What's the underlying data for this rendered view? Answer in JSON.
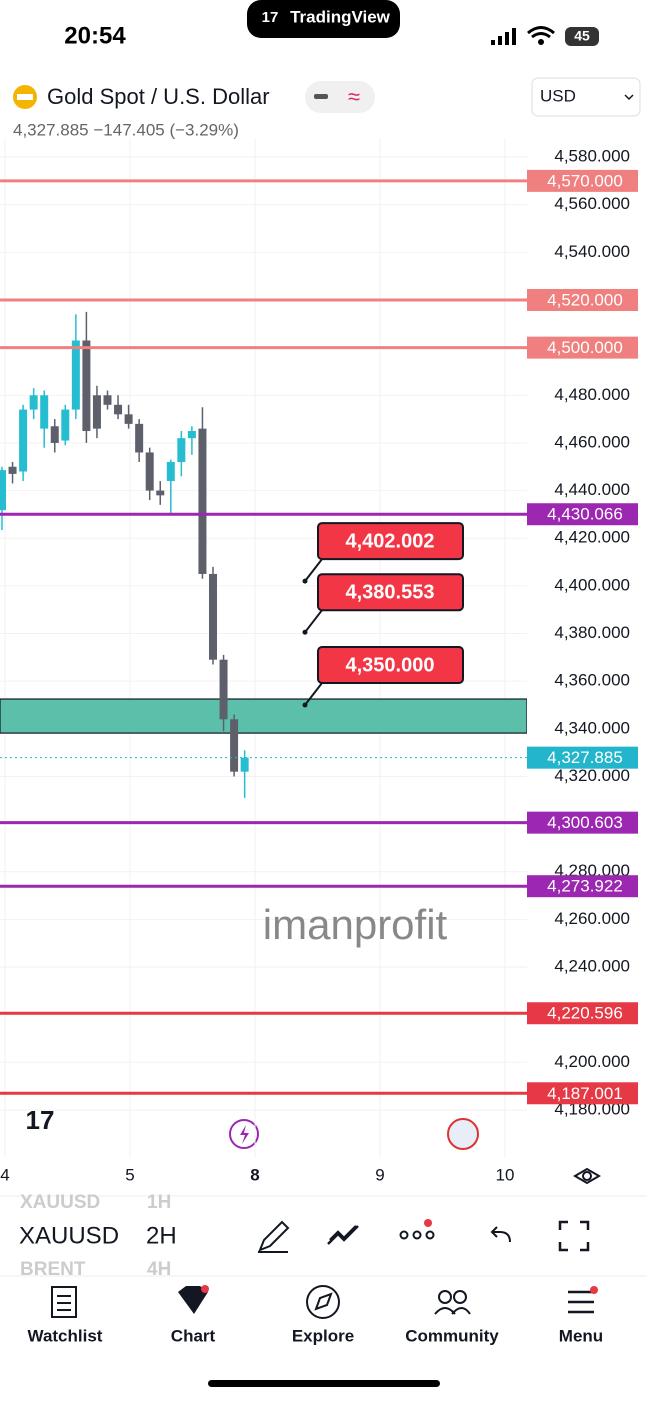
{
  "status": {
    "time": "20:54",
    "app": "TradingView",
    "battery": "45"
  },
  "header": {
    "symbol": "Gold Spot / U.S. Dollar",
    "quote": "4,327.885  −147.405 (−3.29%)",
    "currency": "USD"
  },
  "chart_data": {
    "type": "candlestick",
    "ylim": [
      4160,
      4588
    ],
    "yticks": [
      {
        "value": 4580,
        "label": "4,580.000"
      },
      {
        "value": 4560,
        "label": "4,560.000"
      },
      {
        "value": 4540,
        "label": "4,540.000"
      },
      {
        "value": 4520,
        "label": "4,520.000"
      },
      {
        "value": 4500,
        "label": "4,500.000"
      },
      {
        "value": 4480,
        "label": "4,480.000"
      },
      {
        "value": 4460,
        "label": "4,460.000"
      },
      {
        "value": 4440,
        "label": "4,440.000"
      },
      {
        "value": 4420,
        "label": "4,420.000"
      },
      {
        "value": 4400,
        "label": "4,400.000"
      },
      {
        "value": 4380,
        "label": "4,380.000"
      },
      {
        "value": 4360,
        "label": "4,360.000"
      },
      {
        "value": 4340,
        "label": "4,340.000"
      },
      {
        "value": 4320,
        "label": "4,320.000"
      },
      {
        "value": 4300,
        "label": "4,300.000"
      },
      {
        "value": 4280,
        "label": "4,280.000"
      },
      {
        "value": 4260,
        "label": "4,260.000"
      },
      {
        "value": 4240,
        "label": "4,240.000"
      },
      {
        "value": 4220,
        "label": "4,220.000"
      },
      {
        "value": 4200,
        "label": "4,200.000"
      },
      {
        "value": 4180,
        "label": "4,180.000"
      }
    ],
    "open": [
      4431.8,
      4450,
      4448,
      4474,
      4466,
      4467,
      4461,
      4474,
      4503,
      4480,
      4480,
      4476,
      4472,
      4468,
      4456,
      4440,
      4444,
      4452,
      4462,
      4466,
      4405,
      4369,
      4344,
      4322
    ],
    "high": [
      4450,
      4452,
      4476,
      4483,
      4482,
      4470,
      4476,
      4514,
      4515,
      4484,
      4482,
      4480,
      4476,
      4470,
      4458,
      4444,
      4453,
      4465,
      4467,
      4475,
      4408,
      4371,
      4346,
      4331
    ],
    "low": [
      4423.4,
      4443,
      4444,
      4470,
      4458,
      4456,
      4459,
      4470,
      4460,
      4462,
      4474,
      4470,
      4466,
      4452,
      4436,
      4434,
      4430,
      4446,
      4455,
      4403,
      4367,
      4339,
      4320,
      4311
    ],
    "close": [
      4448.6,
      4447,
      4474,
      4480,
      4480,
      4460,
      4474,
      4503,
      4465,
      4466,
      4476,
      4472,
      4468,
      4456,
      4440,
      4438,
      4452,
      4462,
      4465,
      4405,
      4369,
      4344,
      4322,
      4327.885
    ],
    "colors": {
      "up": "#26bdd0",
      "down": "#5d606b"
    },
    "levels": [
      {
        "value": 4570,
        "label": "4,570.000",
        "color": "#f08080"
      },
      {
        "value": 4520,
        "label": "4,520.000",
        "color": "#f08080"
      },
      {
        "value": 4500,
        "label": "4,500.000",
        "color": "#f08080"
      },
      {
        "value": 4430.066,
        "label": "4,430.066",
        "color": "#9c27b0"
      },
      {
        "value": 4300.603,
        "label": "4,300.603",
        "color": "#9c27b0"
      },
      {
        "value": 4273.922,
        "label": "4,273.922",
        "color": "#9c27b0"
      },
      {
        "value": 4220.596,
        "label": "4,220.596",
        "color": "#e53945"
      },
      {
        "value": 4187.001,
        "label": "4,187.001",
        "color": "#e53945"
      }
    ],
    "current": {
      "value": 4327.885,
      "label": "4,327.885",
      "color": "#22b5cc"
    },
    "zone": {
      "low": 4338.2,
      "high": 4352.5,
      "color": "#5bbfaa"
    },
    "callouts": [
      {
        "value": 4402.002,
        "label": "4,402.002"
      },
      {
        "value": 4380.553,
        "label": "4,380.553"
      },
      {
        "value": 4350.0,
        "label": "4,350.000"
      }
    ],
    "x_labels": [
      "4",
      "5",
      "8",
      "9",
      "10"
    ],
    "watermark": "imanprofit",
    "grid": true
  },
  "toolbar": {
    "symbol": "XAUUSD",
    "interval": "2H",
    "prev_symbol": "XAUUSD",
    "prev_interval": "1H",
    "next_symbol": "BRENT",
    "next_interval": "4H"
  },
  "tabs": [
    "Watchlist",
    "Chart",
    "Explore",
    "Community",
    "Menu"
  ]
}
